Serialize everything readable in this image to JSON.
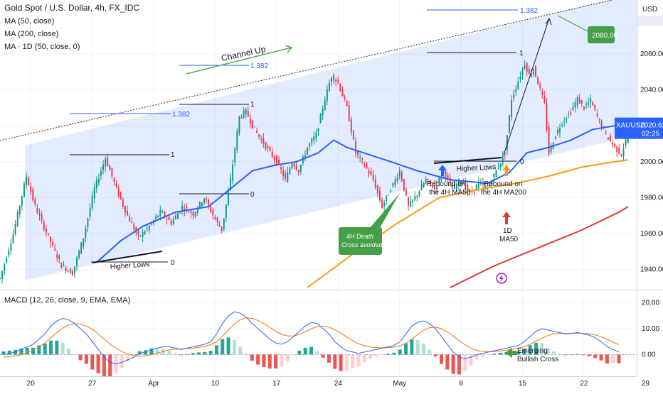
{
  "chart_data": [
    {
      "type": "candlestick",
      "title": "Gold Spot / U.S. Dollar, 4h, FX_IDC",
      "symbol": "XAUUSD",
      "last_price": "2020.62",
      "countdown": "02:25",
      "price_axis_unit": "USD",
      "yticks": [
        "2060.00",
        "2040.00",
        "2020.00",
        "2000.00",
        "1980.00",
        "1960.00",
        "1940.00"
      ],
      "yrange": [
        1930,
        2090
      ],
      "xticks": [
        "20",
        "27",
        "Apr",
        "10",
        "17",
        "24",
        "May",
        "8",
        "15",
        "22",
        "29"
      ],
      "indicators": [
        "MA (50, close)",
        "MA (200, close)",
        "MA · 1D (50, close, 0)"
      ],
      "ma_colors": {
        "ma50": "#2962ff",
        "ma200": "#f39c12",
        "ma1d": "#e53935"
      },
      "candle_colors": {
        "up": "#089981",
        "down": "#f23645"
      },
      "series": [
        {
          "name": "price",
          "path": [
            [
              0,
              1935
            ],
            [
              6,
              1960
            ],
            [
              12,
              1992
            ],
            [
              16,
              1975
            ],
            [
              22,
              1958
            ],
            [
              28,
              1942
            ],
            [
              33,
              1938
            ],
            [
              38,
              1958
            ],
            [
              43,
              1985
            ],
            [
              48,
              2002
            ],
            [
              53,
              1985
            ],
            [
              58,
              1970
            ],
            [
              63,
              1958
            ],
            [
              68,
              1964
            ],
            [
              73,
              1972
            ],
            [
              78,
              1966
            ],
            [
              83,
              1975
            ],
            [
              88,
              1971
            ],
            [
              93,
              1980
            ],
            [
              98,
              1968
            ],
            [
              101,
              1962
            ],
            [
              105,
              1990
            ],
            [
              109,
              2025
            ],
            [
              112,
              2028
            ],
            [
              115,
              2020
            ],
            [
              119,
              2012
            ],
            [
              123,
              2005
            ],
            [
              126,
              2000
            ],
            [
              130,
              1990
            ],
            [
              133,
              2000
            ],
            [
              136,
              1995
            ],
            [
              140,
              2008
            ],
            [
              144,
              2015
            ],
            [
              148,
              2035
            ],
            [
              151,
              2048
            ],
            [
              154,
              2044
            ],
            [
              158,
              2030
            ],
            [
              162,
              2005
            ],
            [
              166,
              1998
            ],
            [
              170,
              1990
            ],
            [
              174,
              1975
            ],
            [
              178,
              1985
            ],
            [
              182,
              1995
            ],
            [
              186,
              1975
            ],
            [
              190,
              1982
            ],
            [
              194,
              1990
            ],
            [
              198,
              1985
            ],
            [
              202,
              1995
            ],
            [
              206,
              1985
            ],
            [
              210,
              1990
            ],
            [
              214,
              1982
            ],
            [
              218,
              1988
            ],
            [
              222,
              1985
            ],
            [
              226,
              1995
            ],
            [
              230,
              2005
            ],
            [
              233,
              2035
            ],
            [
              236,
              2045
            ],
            [
              239,
              2055
            ],
            [
              241,
              2048
            ],
            [
              243,
              2052
            ],
            [
              246,
              2040
            ],
            [
              248,
              2032
            ],
            [
              250,
              2005
            ],
            [
              253,
              2015
            ],
            [
              256,
              2022
            ],
            [
              260,
              2028
            ],
            [
              263,
              2035
            ],
            [
              266,
              2030
            ],
            [
              269,
              2034
            ],
            [
              272,
              2025
            ],
            [
              276,
              2015
            ],
            [
              280,
              2008
            ],
            [
              283,
              2004
            ],
            [
              287,
              2020
            ]
          ]
        },
        {
          "name": "MA (50, close)",
          "path": [
            [
              44,
              1944
            ],
            [
              55,
              1956
            ],
            [
              65,
              1964
            ],
            [
              80,
              1972
            ],
            [
              95,
              1975
            ],
            [
              105,
              1985
            ],
            [
              115,
              1995
            ],
            [
              125,
              1998
            ],
            [
              135,
              2000
            ],
            [
              145,
              2005
            ],
            [
              152,
              2012
            ],
            [
              158,
              2008
            ],
            [
              168,
              2004
            ],
            [
              178,
              2000
            ],
            [
              190,
              1995
            ],
            [
              205,
              1990
            ],
            [
              222,
              1988
            ],
            [
              232,
              1994
            ],
            [
              240,
              2005
            ],
            [
              250,
              2008
            ],
            [
              260,
              2012
            ],
            [
              270,
              2018
            ],
            [
              280,
              2020
            ],
            [
              286,
              2024
            ]
          ]
        },
        {
          "name": "MA (200, close)",
          "path": [
            [
              140,
              1930
            ],
            [
              160,
              1948
            ],
            [
              180,
              1965
            ],
            [
              200,
              1980
            ],
            [
              220,
              1985
            ],
            [
              235,
              1988
            ],
            [
              250,
              1992
            ],
            [
              265,
              1997
            ],
            [
              280,
              2000
            ],
            [
              286,
              2001
            ]
          ]
        },
        {
          "name": "MA · 1D (50, close, 0)",
          "path": [
            [
              205,
              1930
            ],
            [
              225,
              1942
            ],
            [
              245,
              1952
            ],
            [
              265,
              1962
            ],
            [
              282,
              1972
            ],
            [
              286,
              1975
            ]
          ]
        }
      ],
      "annotations": {
        "channel_label": "Channel Up",
        "labels": [
          "1.382",
          "1.382",
          "1.382",
          "1",
          "1",
          "1",
          "0",
          "0",
          "0",
          "Higher Lows",
          "Higher Lows",
          "Rebound on",
          "the 4H MA50",
          "Rebound on",
          "the 4H MA200",
          "1D",
          "MA50",
          "4H Death",
          "Cross avoided",
          "2080.00"
        ]
      }
    },
    {
      "type": "macd",
      "title": "MACD (12, 26, close, 9, EMA, EMA)",
      "yticks": [
        "20.00",
        "10.00",
        "0.00"
      ],
      "yrange": [
        -7,
        24
      ],
      "hist_colors": {
        "pos_strong": "#26a69a",
        "pos_weak": "#b2dfdb",
        "neg_strong": "#ef5350",
        "neg_weak": "#ffcdd2"
      },
      "series": [
        {
          "name": "MACD",
          "values": [
            0,
            0.5,
            1,
            2,
            3,
            4,
            6,
            8,
            11,
            13,
            14,
            13.5,
            12,
            10,
            8,
            5,
            2,
            -1,
            -3,
            -3.5,
            -3,
            -2,
            -1,
            0.5,
            1,
            2,
            2.5,
            3,
            3,
            2.5,
            2,
            2.5,
            3,
            3.5,
            4,
            5,
            8,
            12,
            15,
            16.5,
            16,
            14.5,
            12,
            10,
            8,
            6,
            4.5,
            4,
            5,
            7,
            9,
            11,
            12.5,
            12,
            10,
            8,
            5,
            3,
            1.5,
            1,
            0.5,
            1,
            1.5,
            2,
            2.5,
            3,
            3.5,
            5,
            8,
            11,
            12.5,
            13,
            12,
            10,
            7,
            4,
            1,
            -1,
            -1.5,
            -1,
            0,
            0.5,
            1,
            1.5,
            2,
            2.5,
            3,
            3.5,
            5,
            7,
            9,
            10,
            9.5,
            9,
            8.5,
            8,
            8.2,
            8.5,
            8,
            7.5,
            6.5,
            5,
            3,
            2,
            1
          ]
        },
        {
          "name": "Signal",
          "values": [
            -1,
            -0.8,
            -0.5,
            0,
            0.8,
            1.8,
            3,
            4.5,
            6.5,
            8.5,
            10.2,
            11.5,
            12,
            11.8,
            11,
            9.8,
            8,
            6,
            4,
            2.5,
            1.2,
            0.2,
            -0.4,
            -0.6,
            -0.4,
            0,
            0.6,
            1.2,
            1.8,
            2.1,
            2.2,
            2.3,
            2.5,
            2.8,
            3.2,
            3.8,
            5,
            7,
            9.5,
            11.8,
            13.5,
            14.2,
            14,
            13.2,
            12,
            10.5,
            9,
            7.8,
            7.2,
            7.2,
            7.8,
            8.8,
            10,
            10.8,
            11,
            10.6,
            9.6,
            8.3,
            6.8,
            5.4,
            4.2,
            3.4,
            2.9,
            2.7,
            2.6,
            2.7,
            2.9,
            3.4,
            4.4,
            6,
            7.8,
            9.4,
            10.4,
            10.6,
            10,
            8.8,
            7.2,
            5.4,
            3.8,
            2.5,
            1.6,
            1.2,
            1.1,
            1.2,
            1.4,
            1.7,
            2.1,
            2.5,
            3.1,
            4,
            5.2,
            6.4,
            7.4,
            8,
            8.2,
            8.2,
            8.2,
            8.3,
            8.2,
            8,
            7.6,
            6.9,
            5.9,
            4.8,
            3.8
          ]
        }
      ],
      "annotations": {
        "labels": [
          "Emerging",
          "Bullish Cross"
        ]
      }
    }
  ]
}
